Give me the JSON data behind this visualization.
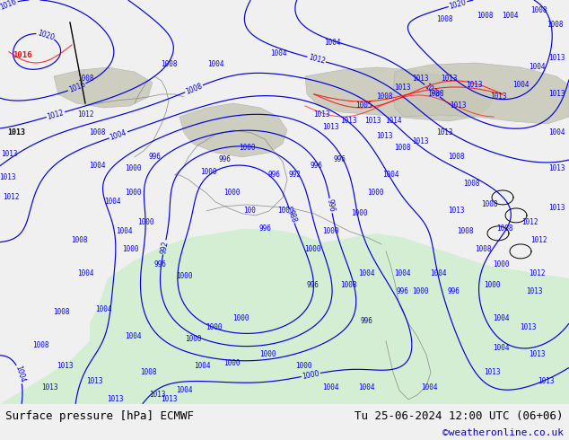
{
  "title_left": "Surface pressure [hPa] ECMWF",
  "title_right": "Tu 25-06-2024 12:00 UTC (06+06)",
  "credit": "©weatheronline.co.uk",
  "land_color": "#b0d8a0",
  "sea_color": "#d0ead0",
  "mountain_color": "#c8c8b8",
  "isobar_color": "#0000dd",
  "coastline_color": "#888888",
  "label_color": "#0000dd",
  "red_label_color": "#dd0000",
  "black_label_color": "#000000",
  "bottom_bar_color": "#f0f0f0",
  "bottom_text_color": "#000000",
  "credit_color": "#0000cc",
  "fig_width": 6.34,
  "fig_height": 4.9,
  "dpi": 100,
  "bottom_bar_height": 0.082,
  "font_size_title": 9,
  "font_size_credit": 8
}
